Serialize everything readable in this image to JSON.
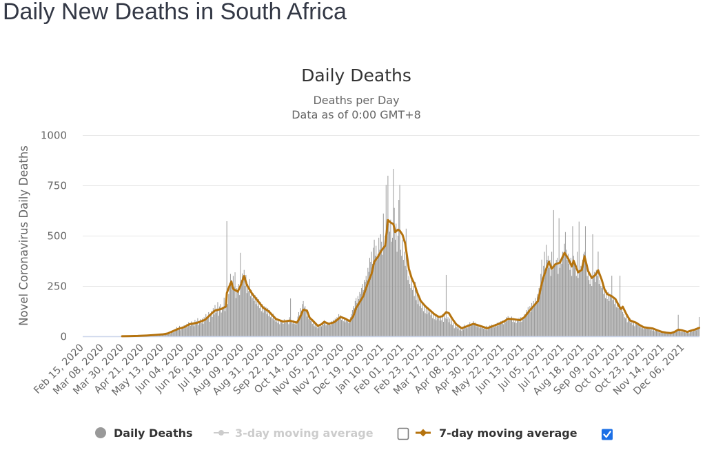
{
  "page": {
    "title": "Daily New Deaths in South Africa"
  },
  "chart_data": {
    "type": "bar",
    "title": "Daily Deaths",
    "subtitle": [
      "Deaths per Day",
      "Data as of 0:00 GMT+8"
    ],
    "xlabel": "",
    "ylabel": "Novel Coronavirus Daily Deaths",
    "ylim": [
      0,
      1000
    ],
    "yticks": [
      0,
      250,
      500,
      750,
      1000
    ],
    "ytick_labels": [
      "0",
      "250",
      "500",
      "750",
      "1000"
    ],
    "x_start_date": "2020-02-15",
    "x_end_date": "2021-12-23",
    "x_step_days": 1,
    "xtick_interval_days": 22,
    "xtick_labels": [
      "Feb 15, 2020",
      "Mar 08, 2020",
      "Mar 30, 2020",
      "Apr 21, 2020",
      "May 13, 2020",
      "Jun 04, 2020",
      "Jun 26, 2020",
      "Jul 18, 2020",
      "Aug 09, 2020",
      "Aug 31, 2020",
      "Sep 22, 2020",
      "Oct 14, 2020",
      "Nov 05, 2020",
      "Nov 27, 2020",
      "Dec 19, 2020",
      "Jan 10, 2021",
      "Feb 01, 2021",
      "Feb 23, 2021",
      "Mar 17, 2021",
      "Apr 08, 2021",
      "Apr 30, 2021",
      "May 22, 2021",
      "Jun 13, 2021",
      "Jul 05, 2021",
      "Jul 27, 2021",
      "Aug 18, 2021",
      "Sep 09, 2021",
      "Oct 01, 2021",
      "Oct 23, 2021",
      "Nov 14, 2021",
      "Dec 06, 2021"
    ],
    "grid": true,
    "legend": {
      "position": "bottom-center",
      "hidden_color": "#cccccc",
      "checkboxes": [
        {
          "series": "3-day moving average",
          "checked": false
        },
        {
          "series": "7-day moving average",
          "checked": true
        }
      ]
    },
    "series": [
      {
        "name": "Daily Deaths",
        "type": "bar",
        "color": "#999999",
        "visible": true,
        "values_start_date": "2020-02-15",
        "values": [
          0,
          0,
          0,
          0,
          0,
          0,
          0,
          0,
          0,
          0,
          0,
          0,
          0,
          0,
          0,
          0,
          0,
          0,
          0,
          0,
          0,
          0,
          0,
          0,
          0,
          0,
          0,
          0,
          0,
          0,
          0,
          0,
          0,
          0,
          0,
          0,
          0,
          0,
          0,
          0,
          0,
          1,
          0,
          1,
          0,
          0,
          2,
          0,
          2,
          1,
          2,
          1,
          3,
          2,
          1,
          2,
          0,
          3,
          2,
          1,
          3,
          2,
          4,
          1,
          3,
          5,
          2,
          4,
          3,
          6,
          2,
          5,
          3,
          7,
          4,
          6,
          8,
          3,
          9,
          5,
          7,
          8,
          10,
          5,
          12,
          7,
          9,
          14,
          8,
          11,
          13,
          10,
          17,
          13,
          15,
          22,
          12,
          27,
          25,
          31,
          20,
          35,
          28,
          46,
          33,
          40,
          52,
          30,
          44,
          49,
          38,
          55,
          40,
          48,
          62,
          45,
          70,
          58,
          52,
          74,
          60,
          68,
          50,
          82,
          61,
          75,
          90,
          55,
          71,
          85,
          66,
          88,
          62,
          95,
          75,
          110,
          84,
          98,
          120,
          72,
          111,
          125,
          96,
          140,
          108,
          155,
          116,
          138,
          170,
          102,
          148,
          160,
          118,
          145,
          140,
          192,
          125,
          150,
          572,
          160,
          210,
          265,
          310,
          280,
          230,
          300,
          245,
          318,
          190,
          240,
          225,
          260,
          205,
          415,
          280,
          312,
          290,
          330,
          250,
          305,
          215,
          260,
          225,
          284,
          200,
          230,
          190,
          215,
          175,
          205,
          160,
          195,
          150,
          185,
          140,
          172,
          125,
          160,
          118,
          150,
          132,
          145,
          110,
          140,
          100,
          130,
          95,
          118,
          88,
          112,
          80,
          98,
          72,
          90,
          65,
          85,
          60,
          82,
          70,
          78,
          62,
          85,
          66,
          80,
          70,
          82,
          60,
          95,
          188,
          75,
          64,
          80,
          62,
          74,
          58,
          72,
          98,
          120,
          105,
          140,
          128,
          160,
          175,
          142,
          150,
          130,
          98,
          110,
          85,
          92,
          78,
          88,
          62,
          75,
          50,
          68,
          45,
          60,
          40,
          58,
          48,
          62,
          50,
          72,
          58,
          80,
          66,
          54,
          70,
          60,
          64,
          68,
          55,
          75,
          62,
          82,
          70,
          88,
          76,
          95,
          84,
          110,
          92,
          105,
          82,
          98,
          75,
          92,
          70,
          88,
          80,
          78,
          65,
          72,
          95,
          110,
          130,
          150,
          140,
          175,
          190,
          165,
          200,
          185,
          220,
          210,
          240,
          260,
          230,
          280,
          270,
          300,
          280,
          340,
          320,
          390,
          370,
          420,
          360,
          440,
          480,
          400,
          450,
          380,
          410,
          490,
          430,
          507,
          470,
          405,
          610,
          450,
          500,
          752,
          500,
          798,
          560,
          520,
          580,
          470,
          490,
          832,
          638,
          480,
          560,
          420,
          500,
          678,
          752,
          430,
          400,
          480,
          380,
          420,
          350,
          535,
          330,
          280,
          300,
          260,
          240,
          290,
          230,
          250,
          200,
          270,
          180,
          210,
          160,
          190,
          150,
          180,
          140,
          170,
          125,
          160,
          115,
          150,
          110,
          140,
          118,
          135,
          105,
          128,
          90,
          118,
          85,
          110,
          80,
          105,
          88,
          100,
          78,
          95,
          80,
          110,
          72,
          105,
          90,
          305,
          85,
          95,
          70,
          88,
          60,
          80,
          55,
          65,
          40,
          58,
          45,
          50,
          38,
          55,
          30,
          48,
          28,
          42,
          35,
          58,
          44,
          52,
          40,
          60,
          45,
          70,
          50,
          62,
          55,
          75,
          58,
          68,
          50,
          62,
          45,
          58,
          40,
          55,
          42,
          50,
          38,
          48,
          35,
          52,
          30,
          45,
          38,
          55,
          42,
          58,
          44,
          56,
          45,
          62,
          50,
          68,
          52,
          70,
          58,
          75,
          62,
          78,
          60,
          82,
          70,
          95,
          75,
          100,
          80,
          92,
          85,
          98,
          72,
          90,
          70,
          85,
          65,
          88,
          75,
          92,
          70,
          95,
          72,
          90,
          85,
          110,
          95,
          130,
          115,
          145,
          125,
          150,
          120,
          165,
          140,
          175,
          150,
          190,
          165,
          210,
          195,
          240,
          230,
          310,
          381,
          290,
          350,
          420,
          330,
          455,
          380,
          400,
          340,
          380,
          300,
          420,
          330,
          627,
          360,
          350,
          380,
          390,
          310,
          587,
          340,
          380,
          360,
          420,
          400,
          460,
          518,
          430,
          380,
          410,
          360,
          330,
          390,
          300,
          547,
          400,
          370,
          340,
          300,
          420,
          290,
          570,
          320,
          350,
          340,
          380,
          410,
          420,
          547,
          350,
          300,
          330,
          280,
          260,
          310,
          250,
          507,
          290,
          320,
          270,
          330,
          300,
          421,
          260,
          280,
          250,
          240,
          270,
          210,
          240,
          190,
          230,
          185,
          220,
          175,
          210,
          195,
          301,
          180,
          195,
          160,
          185,
          145,
          170,
          140,
          160,
          301,
          130,
          145,
          120,
          110,
          95,
          90,
          100,
          70,
          85,
          75,
          90,
          65,
          80,
          55,
          75,
          50,
          70,
          60,
          68,
          55,
          60,
          45,
          55,
          40,
          50,
          35,
          48,
          38,
          45,
          40,
          44,
          35,
          42,
          30,
          40,
          28,
          38,
          25,
          35,
          30,
          32,
          22,
          30,
          18,
          25,
          20,
          22,
          15,
          20,
          18,
          20,
          12,
          18,
          14,
          16,
          12,
          20,
          15,
          25,
          20,
          28,
          22,
          35,
          107,
          30,
          25,
          20,
          28,
          22,
          30,
          25,
          18,
          22,
          20,
          28,
          15,
          32,
          25,
          30,
          22,
          35,
          28,
          40,
          30,
          45,
          38,
          96
        ]
      },
      {
        "name": "3-day moving average",
        "type": "line",
        "visible": false,
        "points": []
      },
      {
        "name": "7-day moving average",
        "type": "line",
        "color": "#b5730e",
        "visible": true,
        "points_format": "[day offset from x_start_date, deaths]",
        "points": [
          [
            43,
            0.3
          ],
          [
            50,
            1
          ],
          [
            60,
            2
          ],
          [
            70,
            4
          ],
          [
            80,
            7
          ],
          [
            88,
            10
          ],
          [
            93,
            14
          ],
          [
            98,
            24
          ],
          [
            104,
            36
          ],
          [
            111,
            45
          ],
          [
            117,
            60
          ],
          [
            126,
            68
          ],
          [
            134,
            82
          ],
          [
            141,
            112
          ],
          [
            145,
            128
          ],
          [
            152,
            136
          ],
          [
            157,
            148
          ],
          [
            158,
            215
          ],
          [
            160,
            240
          ],
          [
            163,
            272
          ],
          [
            165,
            235
          ],
          [
            167,
            230
          ],
          [
            170,
            222
          ],
          [
            173,
            250
          ],
          [
            177,
            300
          ],
          [
            180,
            255
          ],
          [
            183,
            232
          ],
          [
            186,
            210
          ],
          [
            192,
            176
          ],
          [
            198,
            142
          ],
          [
            204,
            124
          ],
          [
            212,
            86
          ],
          [
            220,
            73
          ],
          [
            227,
            78
          ],
          [
            235,
            68
          ],
          [
            238,
            90
          ],
          [
            242,
            132
          ],
          [
            246,
            128
          ],
          [
            249,
            92
          ],
          [
            252,
            80
          ],
          [
            258,
            52
          ],
          [
            262,
            60
          ],
          [
            265,
            72
          ],
          [
            270,
            62
          ],
          [
            276,
            70
          ],
          [
            283,
            96
          ],
          [
            288,
            88
          ],
          [
            293,
            75
          ],
          [
            297,
            100
          ],
          [
            300,
            140
          ],
          [
            304,
            170
          ],
          [
            308,
            200
          ],
          [
            313,
            265
          ],
          [
            317,
            310
          ],
          [
            320,
            370
          ],
          [
            324,
            395
          ],
          [
            328,
            427
          ],
          [
            332,
            450
          ],
          [
            335,
            578
          ],
          [
            338,
            565
          ],
          [
            341,
            558
          ],
          [
            343,
            518
          ],
          [
            346,
            530
          ],
          [
            348,
            525
          ],
          [
            351,
            505
          ],
          [
            354,
            461
          ],
          [
            358,
            336
          ],
          [
            361,
            290
          ],
          [
            364,
            261
          ],
          [
            367,
            220
          ],
          [
            371,
            176
          ],
          [
            376,
            150
          ],
          [
            381,
            130
          ],
          [
            386,
            110
          ],
          [
            391,
            96
          ],
          [
            395,
            100
          ],
          [
            399,
            120
          ],
          [
            402,
            115
          ],
          [
            406,
            85
          ],
          [
            410,
            60
          ],
          [
            416,
            40
          ],
          [
            422,
            50
          ],
          [
            429,
            62
          ],
          [
            436,
            52
          ],
          [
            444,
            40
          ],
          [
            450,
            50
          ],
          [
            457,
            62
          ],
          [
            463,
            75
          ],
          [
            467,
            87
          ],
          [
            473,
            85
          ],
          [
            480,
            80
          ],
          [
            485,
            95
          ],
          [
            490,
            124
          ],
          [
            495,
            150
          ],
          [
            500,
            176
          ],
          [
            502,
            221
          ],
          [
            505,
            280
          ],
          [
            509,
            336
          ],
          [
            512,
            370
          ],
          [
            515,
            336
          ],
          [
            519,
            358
          ],
          [
            524,
            366
          ],
          [
            529,
            415
          ],
          [
            533,
            387
          ],
          [
            537,
            347
          ],
          [
            539,
            376
          ],
          [
            544,
            318
          ],
          [
            548,
            330
          ],
          [
            551,
            398
          ],
          [
            555,
            324
          ],
          [
            559,
            290
          ],
          [
            563,
            305
          ],
          [
            566,
            328
          ],
          [
            570,
            280
          ],
          [
            573,
            233
          ],
          [
            576,
            210
          ],
          [
            581,
            199
          ],
          [
            585,
            185
          ],
          [
            589,
            150
          ],
          [
            591,
            136
          ],
          [
            593,
            147
          ],
          [
            597,
            110
          ],
          [
            601,
            79
          ],
          [
            608,
            67
          ],
          [
            612,
            55
          ],
          [
            616,
            45
          ],
          [
            621,
            42
          ],
          [
            626,
            39
          ],
          [
            631,
            30
          ],
          [
            636,
            22
          ],
          [
            641,
            18
          ],
          [
            646,
            16
          ],
          [
            650,
            22
          ],
          [
            654,
            33
          ],
          [
            658,
            30
          ],
          [
            664,
            22
          ],
          [
            668,
            28
          ],
          [
            672,
            33
          ],
          [
            677,
            42
          ]
        ]
      }
    ]
  }
}
